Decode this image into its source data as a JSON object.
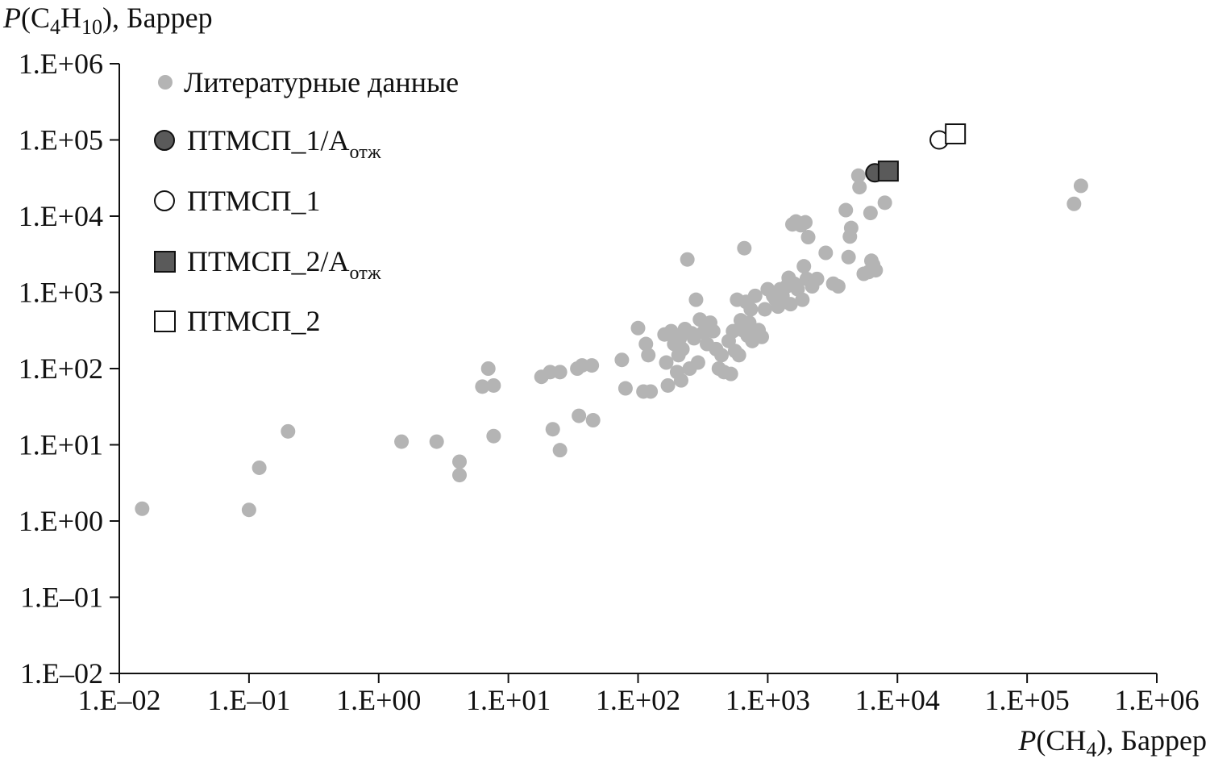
{
  "chart_data": {
    "type": "scatter",
    "x_scale": "log",
    "y_scale": "log",
    "xlim": [
      0.01,
      1000000
    ],
    "ylim": [
      0.01,
      1000000
    ],
    "grid": false,
    "legend_placement": "top-left",
    "y_axis_title": {
      "pre": "P",
      "open": "(C",
      "sub1": "4",
      "mid": "H",
      "sub2": "10",
      "post": "), Баррер"
    },
    "x_axis_title": {
      "pre": "P",
      "open": "(CH",
      "sub1": "4",
      "post": "), Баррер"
    },
    "x_tick_labels": [
      "1.E–02",
      "1.E–01",
      "1.E+00",
      "1.E+01",
      "1.E+02",
      "1.E+03",
      "1.E+04",
      "1.E+05",
      "1.E+06"
    ],
    "y_tick_labels": [
      "1.E–02",
      "1.E–01",
      "1.E+00",
      "1.E+01",
      "1.E+02",
      "1.E+03",
      "1.E+04",
      "1.E+05",
      "1.E+06"
    ],
    "tick_values": [
      0.01,
      0.1,
      1,
      10,
      100,
      1000,
      10000,
      100000,
      1000000
    ],
    "colors": {
      "literature": "#b4b4b4",
      "filled": "#5a5a5a",
      "outline": "#111111",
      "open_fill": "#ffffff"
    },
    "series": [
      {
        "name": "Литературные данные",
        "marker": "circle-small-gray",
        "points": [
          [
            0.015,
            1.45
          ],
          [
            0.12,
            5.0
          ],
          [
            0.2,
            15.0
          ],
          [
            0.1,
            1.4
          ],
          [
            1.5,
            11
          ],
          [
            2.8,
            11
          ],
          [
            4.2,
            6.0
          ],
          [
            4.2,
            4.0
          ],
          [
            6.3,
            58
          ],
          [
            7.0,
            100
          ],
          [
            7.7,
            60
          ],
          [
            7.7,
            13
          ],
          [
            18,
            78
          ],
          [
            21,
            90
          ],
          [
            22,
            16
          ],
          [
            25,
            8.5
          ],
          [
            25,
            90
          ],
          [
            34,
            100
          ],
          [
            35,
            24
          ],
          [
            37,
            110
          ],
          [
            44,
            110
          ],
          [
            45,
            21
          ],
          [
            75,
            130
          ],
          [
            80,
            55
          ],
          [
            100,
            340
          ],
          [
            110,
            50
          ],
          [
            115,
            210
          ],
          [
            120,
            150
          ],
          [
            125,
            50
          ],
          [
            160,
            280
          ],
          [
            165,
            120
          ],
          [
            170,
            60
          ],
          [
            180,
            310
          ],
          [
            190,
            210
          ],
          [
            200,
            90
          ],
          [
            205,
            150
          ],
          [
            210,
            250
          ],
          [
            215,
            70
          ],
          [
            220,
            180
          ],
          [
            230,
            330
          ],
          [
            240,
            2700
          ],
          [
            250,
            100
          ],
          [
            260,
            290
          ],
          [
            270,
            250
          ],
          [
            280,
            800
          ],
          [
            290,
            120
          ],
          [
            300,
            440
          ],
          [
            320,
            300
          ],
          [
            340,
            210
          ],
          [
            360,
            400
          ],
          [
            380,
            310
          ],
          [
            400,
            180
          ],
          [
            420,
            100
          ],
          [
            440,
            150
          ],
          [
            460,
            90
          ],
          [
            500,
            230
          ],
          [
            520,
            85
          ],
          [
            540,
            310
          ],
          [
            560,
            170
          ],
          [
            580,
            800
          ],
          [
            600,
            150
          ],
          [
            620,
            430
          ],
          [
            640,
            320
          ],
          [
            660,
            3800
          ],
          [
            680,
            750
          ],
          [
            700,
            270
          ],
          [
            720,
            400
          ],
          [
            740,
            600
          ],
          [
            760,
            230
          ],
          [
            800,
            900
          ],
          [
            850,
            320
          ],
          [
            900,
            260
          ],
          [
            950,
            600
          ],
          [
            1000,
            1100
          ],
          [
            1100,
            900
          ],
          [
            1150,
            800
          ],
          [
            1200,
            650
          ],
          [
            1250,
            1100
          ],
          [
            1300,
            900
          ],
          [
            1400,
            1200
          ],
          [
            1450,
            1550
          ],
          [
            1500,
            700
          ],
          [
            1550,
            7800
          ],
          [
            1600,
            1300
          ],
          [
            1650,
            8500
          ],
          [
            1700,
            1100
          ],
          [
            1800,
            7600
          ],
          [
            1850,
            800
          ],
          [
            1900,
            2200
          ],
          [
            1950,
            8300
          ],
          [
            2000,
            1500
          ],
          [
            2050,
            5300
          ],
          [
            2200,
            1200
          ],
          [
            2400,
            1500
          ],
          [
            2800,
            3300
          ],
          [
            3200,
            1300
          ],
          [
            3500,
            1200
          ],
          [
            4000,
            12000
          ],
          [
            4200,
            2900
          ],
          [
            4300,
            5400
          ],
          [
            4400,
            7000
          ],
          [
            5000,
            34000
          ],
          [
            5100,
            24000
          ],
          [
            5500,
            1750
          ],
          [
            6000,
            1850
          ],
          [
            6200,
            11000
          ],
          [
            6300,
            2600
          ],
          [
            6500,
            2300
          ],
          [
            6800,
            1950
          ],
          [
            8000,
            15000
          ],
          [
            230000,
            14500
          ],
          [
            260000,
            25000
          ]
        ]
      },
      {
        "name": "ПТМСП_1/А",
        "name_sub": "отж",
        "marker": "circle-filled",
        "points": [
          [
            6700,
            37000
          ]
        ]
      },
      {
        "name": "ПТМСП_1",
        "marker": "circle-open",
        "points": [
          [
            21000,
            100000
          ]
        ]
      },
      {
        "name": "ПТМСП_2/А",
        "name_sub": "отж",
        "marker": "square-filled",
        "points": [
          [
            8500,
            39000
          ]
        ]
      },
      {
        "name": "ПТМСП_2",
        "marker": "square-open",
        "points": [
          [
            28000,
            120000
          ]
        ]
      }
    ]
  }
}
